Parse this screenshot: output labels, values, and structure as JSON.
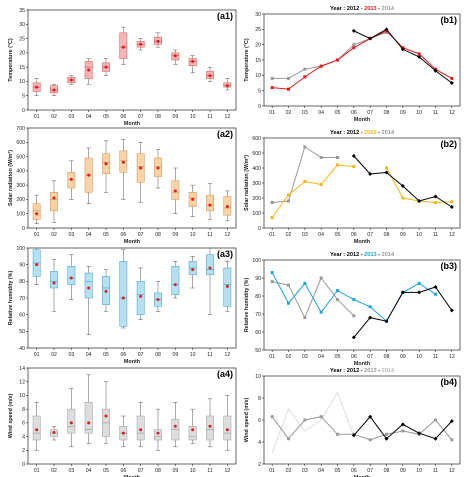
{
  "colors": {
    "red": "#e31a1c",
    "gray": "#999999",
    "black": "#000000",
    "orange": "#f6b717",
    "blue": "#1aa3dc",
    "lightgray": "#bbbbbb",
    "box_temp": "#f7b4b4",
    "box_rad": "#f9d2a6",
    "box_hum": "#b5e0f2",
    "box_wind": "#dddddd"
  },
  "chart_data": [
    {
      "id": "a1",
      "panel_label": "(a1)",
      "type": "box",
      "title": "",
      "xlabel": "Month",
      "ylabel": "Temperature (°C)",
      "ylim": [
        0,
        35
      ],
      "yticks": [
        0,
        5,
        10,
        15,
        20,
        25,
        30,
        35
      ],
      "categories": [
        "01",
        "02",
        "03",
        "04",
        "05",
        "06",
        "07",
        "08",
        "09",
        "10",
        "11",
        "12"
      ],
      "box_color": "#f7b4b4",
      "edge_color": "#d45050",
      "boxes": [
        {
          "min": 5,
          "q1": 6.5,
          "median": 8,
          "q3": 9.5,
          "max": 11,
          "mean": 8
        },
        {
          "min": 5,
          "q1": 6,
          "median": 7,
          "q3": 8.5,
          "max": 9,
          "mean": 7
        },
        {
          "min": 9,
          "q1": 9.5,
          "median": 10.5,
          "q3": 11.5,
          "max": 12,
          "mean": 10.5
        },
        {
          "min": 9,
          "q1": 11,
          "median": 15,
          "q3": 17,
          "max": 18,
          "mean": 14
        },
        {
          "min": 12,
          "q1": 13.5,
          "median": 15,
          "q3": 16.5,
          "max": 18,
          "mean": 15
        },
        {
          "min": 16,
          "q1": 18,
          "median": 22,
          "q3": 27,
          "max": 29,
          "mean": 22
        },
        {
          "min": 21,
          "q1": 22,
          "median": 23,
          "q3": 24,
          "max": 25,
          "mean": 23
        },
        {
          "min": 22,
          "q1": 23,
          "median": 24,
          "q3": 25.5,
          "max": 27,
          "mean": 24
        },
        {
          "min": 16,
          "q1": 17.5,
          "median": 19,
          "q3": 20,
          "max": 21,
          "mean": 19
        },
        {
          "min": 13,
          "q1": 15.5,
          "median": 17,
          "q3": 18,
          "max": 19,
          "mean": 17
        },
        {
          "min": 10,
          "q1": 11,
          "median": 12,
          "q3": 13.5,
          "max": 15,
          "mean": 12
        },
        {
          "min": 7,
          "q1": 8,
          "median": 8.5,
          "q3": 9.5,
          "max": 11,
          "mean": 8.5
        }
      ]
    },
    {
      "id": "b1",
      "panel_label": "(b1)",
      "type": "line",
      "title_prefix": "Year : ",
      "title_items": [
        {
          "text": "2012",
          "color": "#000000"
        },
        {
          "text": "2013",
          "color": "#e31a1c"
        },
        {
          "text": "2014",
          "color": "#999999"
        }
      ],
      "xlabel": "Month",
      "ylabel": "Temperature (°C)",
      "ylim": [
        0,
        30
      ],
      "yticks": [
        0,
        5,
        10,
        15,
        20,
        25,
        30
      ],
      "categories": [
        "01",
        "02",
        "03",
        "04",
        "05",
        "06",
        "07",
        "08",
        "09",
        "10",
        "11",
        "12"
      ],
      "series": [
        {
          "color": "#999999",
          "marker": "square",
          "values": [
            9,
            9,
            12,
            13,
            15,
            20,
            22,
            24,
            null,
            null,
            null,
            null
          ]
        },
        {
          "color": "#e31a1c",
          "marker": "square",
          "values": [
            6,
            5.5,
            9.5,
            13,
            15,
            19,
            22,
            24.5,
            19,
            17,
            12,
            9
          ]
        },
        {
          "color": "#000000",
          "marker": "diamond",
          "values": [
            null,
            null,
            null,
            null,
            null,
            24.5,
            22,
            25,
            18.5,
            16,
            11.5,
            7.5
          ]
        }
      ]
    },
    {
      "id": "a2",
      "panel_label": "(a2)",
      "type": "box",
      "title": "",
      "xlabel": "Month",
      "ylabel": "Solar radiation (W/m²)",
      "ylim": [
        0,
        700
      ],
      "yticks": [
        0,
        100,
        200,
        300,
        400,
        500,
        600,
        700
      ],
      "categories": [
        "01",
        "02",
        "03",
        "04",
        "05",
        "06",
        "07",
        "08",
        "09",
        "10",
        "11",
        "12"
      ],
      "box_color": "#f9d2a6",
      "edge_color": "#d09050",
      "boxes": [
        {
          "min": 30,
          "q1": 60,
          "median": 120,
          "q3": 170,
          "max": 230,
          "mean": 100
        },
        {
          "min": 40,
          "q1": 120,
          "median": 200,
          "q3": 250,
          "max": 330,
          "mean": 210
        },
        {
          "min": 200,
          "q1": 280,
          "median": 340,
          "q3": 390,
          "max": 470,
          "mean": 340
        },
        {
          "min": 170,
          "q1": 250,
          "median": 370,
          "q3": 490,
          "max": 560,
          "mean": 370
        },
        {
          "min": 250,
          "q1": 380,
          "median": 460,
          "q3": 520,
          "max": 610,
          "mean": 450
        },
        {
          "min": 200,
          "q1": 390,
          "median": 470,
          "q3": 540,
          "max": 620,
          "mean": 460
        },
        {
          "min": 180,
          "q1": 320,
          "median": 430,
          "q3": 520,
          "max": 600,
          "mean": 420
        },
        {
          "min": 280,
          "q1": 360,
          "median": 430,
          "q3": 490,
          "max": 550,
          "mean": 420
        },
        {
          "min": 100,
          "q1": 200,
          "median": 250,
          "q3": 330,
          "max": 420,
          "mean": 260
        },
        {
          "min": 80,
          "q1": 150,
          "median": 210,
          "q3": 250,
          "max": 300,
          "mean": 200
        },
        {
          "min": 60,
          "q1": 120,
          "median": 160,
          "q3": 230,
          "max": 310,
          "mean": 160
        },
        {
          "min": 50,
          "q1": 90,
          "median": 140,
          "q3": 220,
          "max": 260,
          "mean": 150
        }
      ]
    },
    {
      "id": "b2",
      "panel_label": "(b2)",
      "type": "line",
      "title_prefix": "Year : ",
      "title_items": [
        {
          "text": "2012",
          "color": "#000000"
        },
        {
          "text": "2013",
          "color": "#f6b717"
        },
        {
          "text": "2014",
          "color": "#999999"
        }
      ],
      "xlabel": "Month",
      "ylabel": "Solar radiation (W/m²)",
      "ylim": [
        0,
        600
      ],
      "yticks": [
        0,
        100,
        200,
        300,
        400,
        500,
        600
      ],
      "categories": [
        "01",
        "02",
        "03",
        "04",
        "05",
        "06",
        "07",
        "08",
        "09",
        "10",
        "11",
        "12"
      ],
      "series": [
        {
          "color": "#999999",
          "marker": "square",
          "values": [
            170,
            180,
            540,
            470,
            470,
            null,
            null,
            null,
            null,
            null,
            null,
            null
          ]
        },
        {
          "color": "#f6b717",
          "marker": "square",
          "values": [
            70,
            220,
            310,
            290,
            420,
            410,
            null,
            400,
            200,
            180,
            170,
            175
          ]
        },
        {
          "color": "#000000",
          "marker": "diamond",
          "values": [
            null,
            null,
            null,
            null,
            null,
            480,
            360,
            370,
            280,
            180,
            210,
            140
          ]
        }
      ]
    },
    {
      "id": "a3",
      "panel_label": "(a3)",
      "type": "box",
      "title": "",
      "xlabel": "Month",
      "ylabel": "Relative humidity (%)",
      "ylim": [
        40,
        100
      ],
      "yticks": [
        40,
        50,
        60,
        70,
        80,
        90,
        100
      ],
      "categories": [
        "01",
        "02",
        "03",
        "04",
        "05",
        "06",
        "07",
        "08",
        "09",
        "10",
        "11",
        "12"
      ],
      "box_color": "#b5e0f2",
      "edge_color": "#3aa0cc",
      "boxes": [
        {
          "min": 78,
          "q1": 83,
          "median": 91,
          "q3": 99,
          "max": 100,
          "mean": 90
        },
        {
          "min": 62,
          "q1": 76,
          "median": 80,
          "q3": 86,
          "max": 93,
          "mean": 79
        },
        {
          "min": 69,
          "q1": 78,
          "median": 82,
          "q3": 89,
          "max": 96,
          "mean": 82
        },
        {
          "min": 48,
          "q1": 70,
          "median": 80,
          "q3": 85,
          "max": 89,
          "mean": 76
        },
        {
          "min": 62,
          "q1": 66,
          "median": 76,
          "q3": 83,
          "max": 87,
          "mean": 74
        },
        {
          "min": 52,
          "q1": 53,
          "median": 70,
          "q3": 92,
          "max": 99,
          "mean": 70
        },
        {
          "min": 57,
          "q1": 60,
          "median": 72,
          "q3": 80,
          "max": 88,
          "mean": 71
        },
        {
          "min": 62,
          "q1": 65,
          "median": 69,
          "q3": 73,
          "max": 80,
          "mean": 69
        },
        {
          "min": 70,
          "q1": 72,
          "median": 78,
          "q3": 89,
          "max": 92,
          "mean": 78
        },
        {
          "min": 76,
          "q1": 84,
          "median": 88,
          "q3": 92,
          "max": 95,
          "mean": 87
        },
        {
          "min": 60,
          "q1": 84,
          "median": 87,
          "q3": 96,
          "max": 100,
          "mean": 88
        },
        {
          "min": 62,
          "q1": 65,
          "median": 78,
          "q3": 88,
          "max": 92,
          "mean": 77
        }
      ]
    },
    {
      "id": "b3",
      "panel_label": "(b3)",
      "type": "line",
      "title_prefix": "Year : ",
      "title_items": [
        {
          "text": "2012",
          "color": "#000000"
        },
        {
          "text": "2013",
          "color": "#1aa3dc"
        },
        {
          "text": "2014",
          "color": "#999999"
        }
      ],
      "xlabel": "Month",
      "ylabel": "Relative humidity (%)",
      "ylim": [
        50,
        100
      ],
      "yticks": [
        50,
        60,
        70,
        80,
        90,
        100
      ],
      "categories": [
        "01",
        "02",
        "03",
        "04",
        "05",
        "06",
        "07",
        "08",
        "09",
        "10",
        "11",
        "12"
      ],
      "series": [
        {
          "color": "#999999",
          "marker": "square",
          "values": [
            88,
            86,
            68,
            90,
            78,
            69,
            null,
            null,
            null,
            null,
            null,
            null
          ]
        },
        {
          "color": "#1aa3dc",
          "marker": "square",
          "values": [
            93,
            76,
            87,
            71,
            83,
            78,
            74,
            66,
            82,
            87,
            81,
            null
          ]
        },
        {
          "color": "#000000",
          "marker": "diamond",
          "values": [
            null,
            null,
            null,
            null,
            null,
            57,
            68,
            66,
            82,
            82,
            85,
            72
          ]
        }
      ]
    },
    {
      "id": "a4",
      "panel_label": "(a4)",
      "type": "box",
      "title": "",
      "xlabel": "Month",
      "ylabel": "Wind speed (m/s)",
      "ylim": [
        0,
        14
      ],
      "yticks": [
        0,
        2,
        4,
        6,
        8,
        10,
        12,
        14
      ],
      "categories": [
        "01",
        "02",
        "03",
        "04",
        "05",
        "06",
        "07",
        "08",
        "09",
        "10",
        "11",
        "12"
      ],
      "box_color": "#dddddd",
      "edge_color": "#999999",
      "boxes": [
        {
          "min": 2,
          "q1": 3.5,
          "median": 4.5,
          "q3": 7,
          "max": 9,
          "mean": 5
        },
        {
          "min": 3.5,
          "q1": 4,
          "median": 4.5,
          "q3": 5,
          "max": 5.5,
          "mean": 4.6
        },
        {
          "min": 2.5,
          "q1": 4.5,
          "median": 5.5,
          "q3": 8,
          "max": 11,
          "mean": 6
        },
        {
          "min": 3,
          "q1": 4.5,
          "median": 5,
          "q3": 9,
          "max": 13,
          "mean": 6
        },
        {
          "min": 3,
          "q1": 4,
          "median": 6,
          "q3": 8,
          "max": 12,
          "mean": 7
        },
        {
          "min": 2.5,
          "q1": 3.5,
          "median": 4.5,
          "q3": 5.5,
          "max": 7,
          "mean": 4.5
        },
        {
          "min": 2.5,
          "q1": 3.5,
          "median": 4.5,
          "q3": 7,
          "max": 9,
          "mean": 5
        },
        {
          "min": 2,
          "q1": 3.5,
          "median": 4,
          "q3": 5,
          "max": 8,
          "mean": 4.5
        },
        {
          "min": 2.5,
          "q1": 3.5,
          "median": 5,
          "q3": 6.5,
          "max": 9,
          "mean": 5.5
        },
        {
          "min": 3,
          "q1": 3.5,
          "median": 4,
          "q3": 5.5,
          "max": 8,
          "mean": 5
        },
        {
          "min": 2.5,
          "q1": 3.5,
          "median": 5,
          "q3": 7,
          "max": 9.5,
          "mean": 5.5
        },
        {
          "min": 2,
          "q1": 3.5,
          "median": 4.5,
          "q3": 7,
          "max": 10,
          "mean": 5
        }
      ]
    },
    {
      "id": "b4",
      "panel_label": "(b4)",
      "type": "line",
      "title_prefix": "Year : ",
      "title_items": [
        {
          "text": "2012",
          "color": "#000000"
        },
        {
          "text": "2013",
          "color": "#999999"
        },
        {
          "text": "2014",
          "color": "#bbbbbb"
        }
      ],
      "xlabel": "Month",
      "ylabel": "Wind speed (m/s)",
      "ylim": [
        2,
        10
      ],
      "yticks": [
        2,
        4,
        6,
        8,
        10
      ],
      "categories": [
        "01",
        "02",
        "03",
        "04",
        "05",
        "06",
        "07",
        "08",
        "09",
        "10",
        "11",
        "12"
      ],
      "series": [
        {
          "color": "#dddddd",
          "marker": "none",
          "values": [
            3,
            7,
            5,
            6,
            8.5,
            4.5,
            null,
            null,
            null,
            null,
            null,
            null
          ]
        },
        {
          "color": "#999999",
          "marker": "square",
          "values": [
            6.3,
            4.3,
            6,
            6.3,
            4.7,
            4.7,
            4.2,
            4.7,
            5,
            4.7,
            6,
            4.2
          ]
        },
        {
          "color": "#000000",
          "marker": "diamond",
          "values": [
            null,
            null,
            null,
            null,
            null,
            4.6,
            6.3,
            4.3,
            5.6,
            4.8,
            4.3,
            5.9
          ]
        }
      ]
    }
  ]
}
